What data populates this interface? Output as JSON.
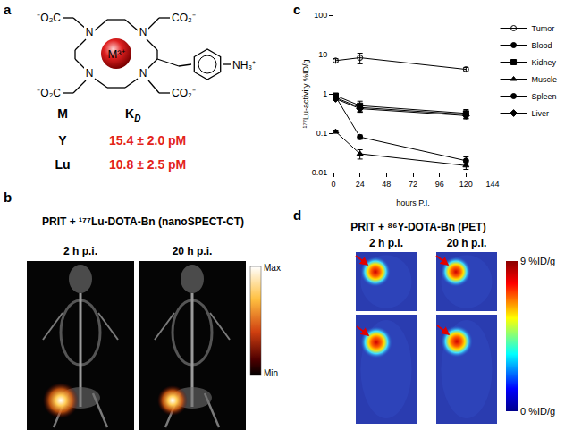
{
  "panel_labels": [
    "a",
    "b",
    "c",
    "d"
  ],
  "panel_a": {
    "structure_labels": {
      "metal": "M³⁺",
      "nitrogen": "N",
      "carboxylates": [
        "⁻O₂C",
        "CO₂⁻",
        "⁻O₂C",
        "CO₂⁻"
      ],
      "amine": "NH₃⁺"
    },
    "table": {
      "header": [
        "M",
        {
          "text": "K",
          "subscript": "D"
        }
      ],
      "rows": [
        [
          "Y",
          "15.4 ± 2.0  pM"
        ],
        [
          "Lu",
          "10.8 ± 2.5  pM"
        ]
      ],
      "value_color": "#e3241b"
    }
  },
  "panel_b": {
    "title": "PRIT + ¹⁷⁷Lu-DOTA-Bn (nanoSPECT-CT)",
    "timepoints": [
      "2 h p.i.",
      "20 h p.i."
    ],
    "colorbar_labels": [
      "Max",
      "Min"
    ]
  },
  "chart_data": {
    "type": "line",
    "x_label": "hours P.I.",
    "y_label": "¹⁷⁷Lu-activity %ID/g",
    "x": [
      2,
      24,
      120
    ],
    "xlim": [
      0,
      144
    ],
    "xticks": [
      0,
      24,
      48,
      72,
      96,
      120,
      144
    ],
    "ylim": [
      0.01,
      100
    ],
    "yticks": [
      0.01,
      0.1,
      1,
      10,
      100
    ],
    "log": "y",
    "grid": false,
    "legend": "right",
    "series": [
      {
        "name": "Tumor",
        "color": "#000000",
        "marker": "circle-open",
        "values": [
          7.0,
          8.3,
          4.2
        ],
        "errors": [
          0.8,
          2.5,
          0.5
        ]
      },
      {
        "name": "Blood",
        "color": "#000000",
        "marker": "circle",
        "values": [
          0.85,
          0.08,
          0.02
        ],
        "errors": [
          0.1,
          0.01,
          0.005
        ]
      },
      {
        "name": "Kidney",
        "color": "#000000",
        "marker": "square",
        "values": [
          0.9,
          0.5,
          0.32
        ],
        "errors": [
          0.1,
          0.15,
          0.08
        ]
      },
      {
        "name": "Muscle",
        "color": "#000000",
        "marker": "triangle-up",
        "values": [
          0.11,
          0.03,
          0.015
        ],
        "errors": [
          0.01,
          0.008,
          0.003
        ]
      },
      {
        "name": "Spleen",
        "color": "#000000",
        "marker": "circle",
        "values": [
          0.8,
          0.45,
          0.3
        ],
        "errors": [
          0.08,
          0.1,
          0.06
        ]
      },
      {
        "name": "Liver",
        "color": "#000000",
        "marker": "diamond",
        "values": [
          0.75,
          0.42,
          0.28
        ],
        "errors": [
          0.07,
          0.08,
          0.05
        ]
      }
    ]
  },
  "panel_d": {
    "title": "PRIT + ⁸⁶Y-DOTA-Bn (PET)",
    "timepoints": [
      "2 h p.i.",
      "20 h p.i."
    ],
    "colorbar": {
      "range": [
        0,
        9
      ],
      "ticks": [
        {
          "value": 9,
          "label": "9 %ID/g"
        },
        {
          "value": 0,
          "label": "0 %ID/g"
        }
      ]
    }
  }
}
